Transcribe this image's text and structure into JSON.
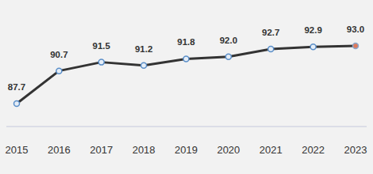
{
  "chart_data": {
    "type": "line",
    "categories": [
      "2015",
      "2016",
      "2017",
      "2018",
      "2019",
      "2020",
      "2021",
      "2022",
      "2023"
    ],
    "values": [
      87.7,
      90.7,
      91.5,
      91.2,
      91.8,
      92.0,
      92.7,
      92.9,
      93.0
    ],
    "color": "#333333",
    "colors": [
      "#e6eef7",
      "#e6eef7",
      "#e6eef7",
      "#e6eef7",
      "#e6eef7",
      "#e6eef7",
      "#e6eef7",
      "#e6eef7",
      "#e07a5a"
    ],
    "marker": "circle",
    "ylim": [
      85.6,
      97.2
    ],
    "data_labels": true,
    "tick_labels": "x"
  }
}
